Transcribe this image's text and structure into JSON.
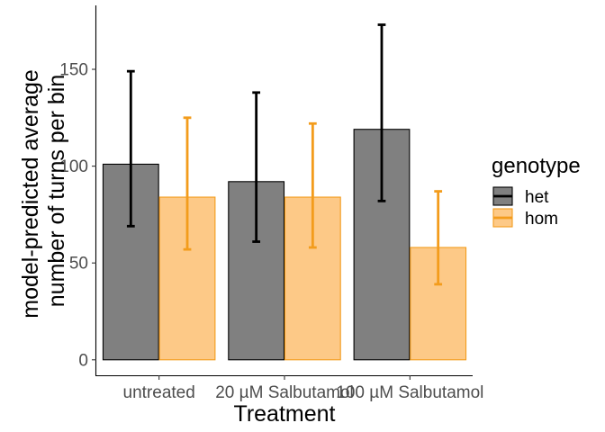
{
  "chart_data": {
    "type": "bar",
    "xlabel": "Treatment",
    "ylabel_lines": [
      "model-predicted average",
      "number of turns per bin"
    ],
    "categories": [
      "untreated",
      "20 µM Salbutamol",
      "100 µM Salbutamol"
    ],
    "ylim": [
      -8,
      183
    ],
    "yticks": [
      0,
      50,
      100,
      150
    ],
    "grid": false,
    "legend": {
      "title": "genotype",
      "placement": "right"
    },
    "series": [
      {
        "name": "het",
        "fill": "#808080",
        "stroke": "#000000",
        "error_color": "#000000",
        "values": [
          101,
          92,
          119
        ],
        "lower": [
          69,
          61,
          82
        ],
        "upper": [
          149,
          138,
          173
        ]
      },
      {
        "name": "hom",
        "fill": "#fdc987",
        "stroke": "#f39c1c",
        "error_color": "#f39c1c",
        "values": [
          84,
          84,
          58
        ],
        "lower": [
          57,
          58,
          39
        ],
        "upper": [
          125,
          122,
          87
        ]
      }
    ]
  }
}
